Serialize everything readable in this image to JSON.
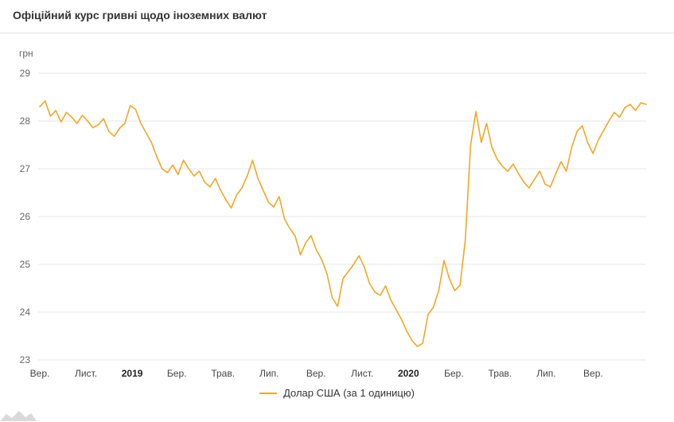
{
  "header": {
    "title": "Офіційний курс гривні щодо іноземних валют"
  },
  "legend": {
    "label": "Долар США (за 1 одиницю)"
  },
  "chart_data": {
    "type": "line",
    "title": "Офіційний курс гривні щодо іноземних валют",
    "ylabel": "грн",
    "xlabel": "",
    "ylim": [
      23,
      29
    ],
    "yticks": [
      29,
      28,
      27,
      26,
      25,
      24,
      23
    ],
    "grid": "horizontal",
    "legend_position": "bottom",
    "xticks": [
      {
        "label": "Вер.",
        "pos": 0.0,
        "bold": false
      },
      {
        "label": "Лист.",
        "pos": 0.0761,
        "bold": false
      },
      {
        "label": "2019",
        "pos": 0.1523,
        "bold": true
      },
      {
        "label": "Бер.",
        "pos": 0.226,
        "bold": false
      },
      {
        "label": "Трав.",
        "pos": 0.3021,
        "bold": false
      },
      {
        "label": "Лип.",
        "pos": 0.3783,
        "bold": false
      },
      {
        "label": "Вер.",
        "pos": 0.4557,
        "bold": false
      },
      {
        "label": "Лист.",
        "pos": 0.5318,
        "bold": false
      },
      {
        "label": "2020",
        "pos": 0.608,
        "bold": true
      },
      {
        "label": "Бер.",
        "pos": 0.6829,
        "bold": false
      },
      {
        "label": "Трав.",
        "pos": 0.759,
        "bold": false
      },
      {
        "label": "Лип.",
        "pos": 0.8352,
        "bold": false
      },
      {
        "label": "Вер.",
        "pos": 0.9126,
        "bold": false
      }
    ],
    "series": [
      {
        "name": "Долар США (за 1 одиницю)",
        "color": "#f5a623",
        "values": [
          28.3,
          28.42,
          28.1,
          28.22,
          27.98,
          28.18,
          28.08,
          27.95,
          28.12,
          28.0,
          27.86,
          27.92,
          28.05,
          27.78,
          27.68,
          27.85,
          27.95,
          28.32,
          28.25,
          27.95,
          27.75,
          27.55,
          27.25,
          27.0,
          26.92,
          27.08,
          26.88,
          27.18,
          27.0,
          26.85,
          26.95,
          26.72,
          26.62,
          26.8,
          26.55,
          26.35,
          26.18,
          26.45,
          26.6,
          26.85,
          27.18,
          26.8,
          26.55,
          26.3,
          26.2,
          26.42,
          25.95,
          25.75,
          25.6,
          25.2,
          25.45,
          25.6,
          25.3,
          25.1,
          24.8,
          24.3,
          24.12,
          24.7,
          24.85,
          25.0,
          25.18,
          24.95,
          24.6,
          24.42,
          24.35,
          24.55,
          24.25,
          24.05,
          23.85,
          23.6,
          23.4,
          23.28,
          23.35,
          23.95,
          24.1,
          24.45,
          25.08,
          24.7,
          24.45,
          24.56,
          25.5,
          27.5,
          28.2,
          27.55,
          27.95,
          27.45,
          27.2,
          27.05,
          26.95,
          27.1,
          26.9,
          26.72,
          26.6,
          26.78,
          26.95,
          26.68,
          26.62,
          26.9,
          27.15,
          26.95,
          27.45,
          27.78,
          27.9,
          27.55,
          27.32,
          27.6,
          27.8,
          28.0,
          28.18,
          28.08,
          28.28,
          28.35,
          28.22,
          28.38,
          28.35
        ]
      }
    ]
  }
}
